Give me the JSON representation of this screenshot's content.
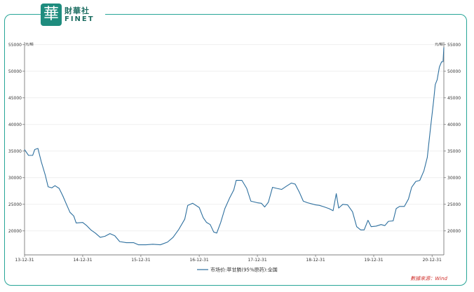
{
  "brand": {
    "logo_char": "華",
    "name_cn": "財華社",
    "name_en": "FINET"
  },
  "source_note": "數據來源：Wind",
  "chart_data": {
    "type": "line",
    "unit_left": "元/噸",
    "unit_right": "元/噸",
    "ylim": [
      15500,
      55500
    ],
    "yticks": [
      20000,
      25000,
      30000,
      35000,
      40000,
      45000,
      50000,
      55000
    ],
    "xlim": [
      "2013-12-31",
      "2021-03-15"
    ],
    "xticks": [
      {
        "date": "2013-12-31",
        "label": "13-12-31"
      },
      {
        "date": "2014-12-31",
        "label": "14-12-31"
      },
      {
        "date": "2015-12-31",
        "label": "15-12-31"
      },
      {
        "date": "2016-12-31",
        "label": "16-12-31"
      },
      {
        "date": "2017-12-31",
        "label": "17-12-31"
      },
      {
        "date": "2018-12-31",
        "label": "18-12-31"
      },
      {
        "date": "2019-12-31",
        "label": "19-12-31"
      },
      {
        "date": "2020-12-31",
        "label": "20-12-31"
      }
    ],
    "grid": true,
    "legend_position": "bottom-center",
    "series": [
      {
        "name": "市场价:草甘膦(95%原药):全国",
        "color": "#2d6f9e",
        "points": [
          [
            "2013-12-31",
            35300
          ],
          [
            "2014-01-25",
            34200
          ],
          [
            "2014-02-20",
            34200
          ],
          [
            "2014-03-05",
            35300
          ],
          [
            "2014-03-25",
            35500
          ],
          [
            "2014-04-15",
            33000
          ],
          [
            "2014-05-10",
            30500
          ],
          [
            "2014-05-28",
            28300
          ],
          [
            "2014-06-20",
            28100
          ],
          [
            "2014-07-10",
            28500
          ],
          [
            "2014-08-05",
            28000
          ],
          [
            "2014-08-28",
            26600
          ],
          [
            "2014-09-20",
            25000
          ],
          [
            "2014-10-12",
            23500
          ],
          [
            "2014-11-05",
            22800
          ],
          [
            "2014-11-20",
            21500
          ],
          [
            "2014-12-31",
            21600
          ],
          [
            "2015-01-25",
            21000
          ],
          [
            "2015-02-20",
            20200
          ],
          [
            "2015-03-20",
            19600
          ],
          [
            "2015-04-20",
            18800
          ],
          [
            "2015-05-20",
            19000
          ],
          [
            "2015-06-20",
            19500
          ],
          [
            "2015-07-20",
            19100
          ],
          [
            "2015-08-20",
            18000
          ],
          [
            "2015-10-01",
            17800
          ],
          [
            "2015-11-15",
            17800
          ],
          [
            "2015-12-15",
            17400
          ],
          [
            "2016-02-01",
            17400
          ],
          [
            "2016-03-15",
            17500
          ],
          [
            "2016-05-01",
            17400
          ],
          [
            "2016-06-15",
            17900
          ],
          [
            "2016-07-20",
            18800
          ],
          [
            "2016-08-25",
            20300
          ],
          [
            "2016-10-01",
            22200
          ],
          [
            "2016-10-20",
            24800
          ],
          [
            "2016-11-20",
            25200
          ],
          [
            "2016-12-31",
            24400
          ],
          [
            "2017-01-25",
            22500
          ],
          [
            "2017-02-15",
            21600
          ],
          [
            "2017-03-10",
            21200
          ],
          [
            "2017-04-01",
            19800
          ],
          [
            "2017-04-20",
            19600
          ],
          [
            "2017-05-15",
            21600
          ],
          [
            "2017-06-10",
            24200
          ],
          [
            "2017-07-10",
            26200
          ],
          [
            "2017-08-05",
            27700
          ],
          [
            "2017-08-20",
            29500
          ],
          [
            "2017-09-25",
            29500
          ],
          [
            "2017-10-25",
            28000
          ],
          [
            "2017-11-20",
            25600
          ],
          [
            "2017-12-31",
            25300
          ],
          [
            "2018-01-25",
            25200
          ],
          [
            "2018-02-15",
            24500
          ],
          [
            "2018-03-10",
            25400
          ],
          [
            "2018-04-05",
            28200
          ],
          [
            "2018-05-01",
            28000
          ],
          [
            "2018-06-01",
            27800
          ],
          [
            "2018-07-01",
            28400
          ],
          [
            "2018-08-01",
            29000
          ],
          [
            "2018-08-25",
            28800
          ],
          [
            "2018-09-20",
            27300
          ],
          [
            "2018-10-15",
            25600
          ],
          [
            "2018-11-10",
            25300
          ],
          [
            "2018-12-31",
            24900
          ],
          [
            "2019-01-25",
            24800
          ],
          [
            "2019-02-25",
            24500
          ],
          [
            "2019-03-25",
            24200
          ],
          [
            "2019-04-20",
            23800
          ],
          [
            "2019-05-10",
            27000
          ],
          [
            "2019-05-25",
            24300
          ],
          [
            "2019-06-20",
            25000
          ],
          [
            "2019-07-20",
            24900
          ],
          [
            "2019-08-20",
            23600
          ],
          [
            "2019-09-15",
            20800
          ],
          [
            "2019-10-10",
            20200
          ],
          [
            "2019-11-01",
            20200
          ],
          [
            "2019-11-25",
            22000
          ],
          [
            "2019-12-15",
            20800
          ],
          [
            "2020-01-15",
            20900
          ],
          [
            "2020-02-15",
            21200
          ],
          [
            "2020-03-10",
            21000
          ],
          [
            "2020-04-01",
            21800
          ],
          [
            "2020-05-01",
            21900
          ],
          [
            "2020-05-20",
            24200
          ],
          [
            "2020-06-10",
            24600
          ],
          [
            "2020-07-10",
            24600
          ],
          [
            "2020-08-05",
            26000
          ],
          [
            "2020-08-25",
            28200
          ],
          [
            "2020-09-20",
            29300
          ],
          [
            "2020-10-15",
            29500
          ],
          [
            "2020-11-10",
            31300
          ],
          [
            "2020-12-01",
            33800
          ],
          [
            "2020-12-20",
            39000
          ],
          [
            "2021-01-10",
            44500
          ],
          [
            "2021-01-20",
            47500
          ],
          [
            "2021-02-01",
            48400
          ],
          [
            "2021-02-15",
            50800
          ],
          [
            "2021-03-01",
            51800
          ],
          [
            "2021-03-10",
            51800
          ],
          [
            "2021-03-15",
            54500
          ]
        ]
      }
    ]
  }
}
